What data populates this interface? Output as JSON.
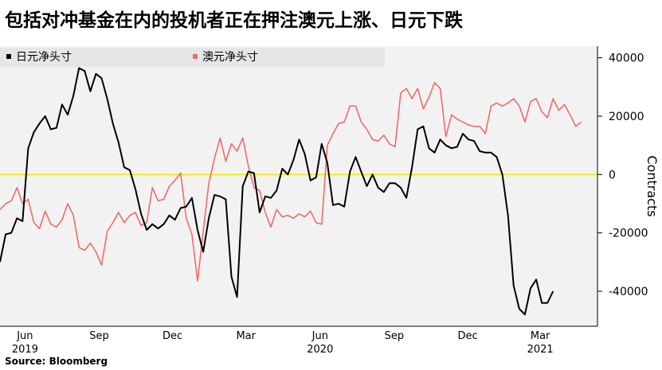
{
  "title": "包括对冲基金在内的投机者正在押注澳元上涨、日元下跌",
  "source": "Source: Bloomberg",
  "colors": {
    "jpy": "#000000",
    "aud": "#f26b6b",
    "zero_line": "#f2e600",
    "background": "#f2f2f2",
    "legend_bg": "#e6e6e6"
  },
  "chart_data": {
    "type": "line",
    "ylabel": "Contracts",
    "ylim": [
      -52000,
      44000
    ],
    "yticks": [
      40000,
      20000,
      0,
      -20000,
      -40000
    ],
    "ytick_labels": [
      "40000",
      "20000",
      "0",
      "-20000",
      "-40000"
    ],
    "xlim": [
      "2019-05-01",
      "2021-05-11"
    ],
    "xticks": [
      {
        "date": "2019-06-01",
        "label": "Jun",
        "year": "2019"
      },
      {
        "date": "2019-09-01",
        "label": "Sep",
        "year": ""
      },
      {
        "date": "2019-12-01",
        "label": "Dec",
        "year": ""
      },
      {
        "date": "2020-03-01",
        "label": "Mar",
        "year": ""
      },
      {
        "date": "2020-06-01",
        "label": "Jun",
        "year": "2020"
      },
      {
        "date": "2020-09-01",
        "label": "Sep",
        "year": ""
      },
      {
        "date": "2020-12-01",
        "label": "Dec",
        "year": ""
      },
      {
        "date": "2021-03-01",
        "label": "Mar",
        "year": "2021"
      }
    ],
    "legend_position": "top-left",
    "grid": false,
    "reference_line": 0,
    "series": [
      {
        "name": "日元净头寸",
        "color": "#000000",
        "points": [
          [
            "2019-05-01",
            -30000
          ],
          [
            "2019-05-08",
            -20500
          ],
          [
            "2019-05-15",
            -20000
          ],
          [
            "2019-05-22",
            -15000
          ],
          [
            "2019-05-29",
            -16000
          ],
          [
            "2019-06-05",
            9000
          ],
          [
            "2019-06-12",
            14500
          ],
          [
            "2019-06-19",
            17500
          ],
          [
            "2019-06-26",
            20000
          ],
          [
            "2019-07-03",
            15500
          ],
          [
            "2019-07-10",
            16000
          ],
          [
            "2019-07-17",
            24000
          ],
          [
            "2019-07-24",
            20500
          ],
          [
            "2019-07-31",
            27000
          ],
          [
            "2019-08-07",
            36500
          ],
          [
            "2019-08-14",
            35500
          ],
          [
            "2019-08-21",
            28500
          ],
          [
            "2019-08-28",
            34500
          ],
          [
            "2019-09-04",
            33000
          ],
          [
            "2019-09-11",
            26000
          ],
          [
            "2019-09-18",
            17500
          ],
          [
            "2019-09-25",
            11000
          ],
          [
            "2019-10-02",
            2500
          ],
          [
            "2019-10-09",
            1500
          ],
          [
            "2019-10-16",
            -5000
          ],
          [
            "2019-10-23",
            -13500
          ],
          [
            "2019-10-30",
            -19000
          ],
          [
            "2019-11-06",
            -17000
          ],
          [
            "2019-11-13",
            -18500
          ],
          [
            "2019-11-20",
            -17000
          ],
          [
            "2019-11-27",
            -14000
          ],
          [
            "2019-12-04",
            -15500
          ],
          [
            "2019-12-11",
            -11500
          ],
          [
            "2019-12-18",
            -11000
          ],
          [
            "2019-12-25",
            -8000
          ],
          [
            "2020-01-01",
            -19000
          ],
          [
            "2020-01-08",
            -26500
          ],
          [
            "2020-01-15",
            -15000
          ],
          [
            "2020-01-22",
            -7000
          ],
          [
            "2020-01-29",
            -7500
          ],
          [
            "2020-02-05",
            -8500
          ],
          [
            "2020-02-12",
            -35000
          ],
          [
            "2020-02-19",
            -42000
          ],
          [
            "2020-02-26",
            -4000
          ],
          [
            "2020-03-04",
            1000
          ],
          [
            "2020-03-11",
            500
          ],
          [
            "2020-03-18",
            -13000
          ],
          [
            "2020-03-25",
            -7500
          ],
          [
            "2020-04-01",
            -8000
          ],
          [
            "2020-04-08",
            -5500
          ],
          [
            "2020-04-15",
            2000
          ],
          [
            "2020-04-22",
            0
          ],
          [
            "2020-04-29",
            5000
          ],
          [
            "2020-05-06",
            12000
          ],
          [
            "2020-05-13",
            7000
          ],
          [
            "2020-05-20",
            -2000
          ],
          [
            "2020-05-27",
            -1000
          ],
          [
            "2020-06-03",
            10500
          ],
          [
            "2020-06-10",
            4000
          ],
          [
            "2020-06-17",
            -10500
          ],
          [
            "2020-06-24",
            -10000
          ],
          [
            "2020-07-01",
            -11000
          ],
          [
            "2020-07-08",
            1000
          ],
          [
            "2020-07-15",
            6000
          ],
          [
            "2020-07-22",
            1000
          ],
          [
            "2020-07-29",
            -4000
          ],
          [
            "2020-08-05",
            0
          ],
          [
            "2020-08-12",
            -4500
          ],
          [
            "2020-08-19",
            -6000
          ],
          [
            "2020-08-26",
            -3000
          ],
          [
            "2020-09-02",
            -3000
          ],
          [
            "2020-09-09",
            -4500
          ],
          [
            "2020-09-16",
            -8000
          ],
          [
            "2020-09-23",
            2500
          ],
          [
            "2020-09-30",
            15500
          ],
          [
            "2020-10-07",
            16500
          ],
          [
            "2020-10-14",
            9000
          ],
          [
            "2020-10-21",
            7500
          ],
          [
            "2020-10-28",
            12000
          ],
          [
            "2020-11-04",
            10000
          ],
          [
            "2020-11-11",
            9000
          ],
          [
            "2020-11-18",
            9500
          ],
          [
            "2020-11-25",
            14000
          ],
          [
            "2020-12-02",
            12000
          ],
          [
            "2020-12-09",
            11500
          ],
          [
            "2020-12-16",
            8000
          ],
          [
            "2020-12-23",
            7500
          ],
          [
            "2020-12-30",
            7500
          ],
          [
            "2021-01-06",
            6000
          ],
          [
            "2021-01-13",
            0
          ],
          [
            "2021-01-20",
            -14000
          ],
          [
            "2021-01-27",
            -38000
          ],
          [
            "2021-02-03",
            -46000
          ],
          [
            "2021-02-10",
            -48000
          ],
          [
            "2021-02-17",
            -39000
          ],
          [
            "2021-02-24",
            -36000
          ],
          [
            "2021-03-03",
            -44000
          ],
          [
            "2021-03-10",
            -44000
          ],
          [
            "2021-03-17",
            -40000
          ]
        ]
      },
      {
        "name": "澳元净头寸",
        "color": "#f26b6b",
        "points": [
          [
            "2019-05-01",
            -12000
          ],
          [
            "2019-05-08",
            -10000
          ],
          [
            "2019-05-15",
            -9000
          ],
          [
            "2019-05-22",
            -4500
          ],
          [
            "2019-05-29",
            -10000
          ],
          [
            "2019-06-05",
            -8500
          ],
          [
            "2019-06-12",
            -16500
          ],
          [
            "2019-06-19",
            -18500
          ],
          [
            "2019-06-26",
            -12500
          ],
          [
            "2019-07-03",
            -17000
          ],
          [
            "2019-07-10",
            -18000
          ],
          [
            "2019-07-17",
            -15500
          ],
          [
            "2019-07-24",
            -10000
          ],
          [
            "2019-07-31",
            -14000
          ],
          [
            "2019-08-07",
            -25000
          ],
          [
            "2019-08-14",
            -26000
          ],
          [
            "2019-08-21",
            -23500
          ],
          [
            "2019-08-28",
            -26500
          ],
          [
            "2019-09-04",
            -31000
          ],
          [
            "2019-09-11",
            -19500
          ],
          [
            "2019-09-18",
            -16500
          ],
          [
            "2019-09-25",
            -13000
          ],
          [
            "2019-10-02",
            -16500
          ],
          [
            "2019-10-09",
            -14000
          ],
          [
            "2019-10-16",
            -13000
          ],
          [
            "2019-10-23",
            -17500
          ],
          [
            "2019-10-30",
            -16500
          ],
          [
            "2019-11-06",
            -4500
          ],
          [
            "2019-11-13",
            -9000
          ],
          [
            "2019-11-20",
            -8500
          ],
          [
            "2019-11-27",
            -4000
          ],
          [
            "2019-12-04",
            -2000
          ],
          [
            "2019-12-11",
            500
          ],
          [
            "2019-12-18",
            -15000
          ],
          [
            "2019-12-25",
            -20500
          ],
          [
            "2020-01-01",
            -36500
          ],
          [
            "2020-01-08",
            -19500
          ],
          [
            "2020-01-15",
            -3000
          ],
          [
            "2020-01-22",
            5500
          ],
          [
            "2020-01-29",
            12500
          ],
          [
            "2020-02-05",
            4500
          ],
          [
            "2020-02-12",
            10500
          ],
          [
            "2020-02-19",
            8000
          ],
          [
            "2020-02-26",
            12500
          ],
          [
            "2020-03-04",
            3000
          ],
          [
            "2020-03-11",
            -4500
          ],
          [
            "2020-03-18",
            -5500
          ],
          [
            "2020-03-25",
            -13000
          ],
          [
            "2020-04-01",
            -18000
          ],
          [
            "2020-04-08",
            -12000
          ],
          [
            "2020-04-15",
            -14500
          ],
          [
            "2020-04-22",
            -14000
          ],
          [
            "2020-04-29",
            -15000
          ],
          [
            "2020-05-06",
            -13500
          ],
          [
            "2020-05-13",
            -14500
          ],
          [
            "2020-05-20",
            -12500
          ],
          [
            "2020-05-27",
            -16500
          ],
          [
            "2020-06-03",
            -17000
          ],
          [
            "2020-06-10",
            10000
          ],
          [
            "2020-06-17",
            14000
          ],
          [
            "2020-06-24",
            17500
          ],
          [
            "2020-07-01",
            18000
          ],
          [
            "2020-07-08",
            23500
          ],
          [
            "2020-07-15",
            23500
          ],
          [
            "2020-07-22",
            18000
          ],
          [
            "2020-07-29",
            15500
          ],
          [
            "2020-08-05",
            12000
          ],
          [
            "2020-08-12",
            11500
          ],
          [
            "2020-08-19",
            13500
          ],
          [
            "2020-08-26",
            10500
          ],
          [
            "2020-09-02",
            9500
          ],
          [
            "2020-09-09",
            28000
          ],
          [
            "2020-09-16",
            29500
          ],
          [
            "2020-09-23",
            26000
          ],
          [
            "2020-09-30",
            29500
          ],
          [
            "2020-10-07",
            22500
          ],
          [
            "2020-10-14",
            26500
          ],
          [
            "2020-10-21",
            31500
          ],
          [
            "2020-10-28",
            29500
          ],
          [
            "2020-11-04",
            13000
          ],
          [
            "2020-11-11",
            20500
          ],
          [
            "2020-11-18",
            19000
          ],
          [
            "2020-11-25",
            18000
          ],
          [
            "2020-12-02",
            17000
          ],
          [
            "2020-12-09",
            16500
          ],
          [
            "2020-12-16",
            16500
          ],
          [
            "2020-12-23",
            14000
          ],
          [
            "2020-12-30",
            23500
          ],
          [
            "2021-01-06",
            24500
          ],
          [
            "2021-01-13",
            23500
          ],
          [
            "2021-01-20",
            24500
          ],
          [
            "2021-01-27",
            26000
          ],
          [
            "2021-02-03",
            23500
          ],
          [
            "2021-02-10",
            18000
          ],
          [
            "2021-02-17",
            25000
          ],
          [
            "2021-02-24",
            26000
          ],
          [
            "2021-03-03",
            21500
          ],
          [
            "2021-03-10",
            19500
          ],
          [
            "2021-03-17",
            26000
          ],
          [
            "2021-03-24",
            22000
          ],
          [
            "2021-03-31",
            24000
          ],
          [
            "2021-04-07",
            20500
          ],
          [
            "2021-04-14",
            16500
          ],
          [
            "2021-04-21",
            18000
          ]
        ]
      }
    ]
  }
}
